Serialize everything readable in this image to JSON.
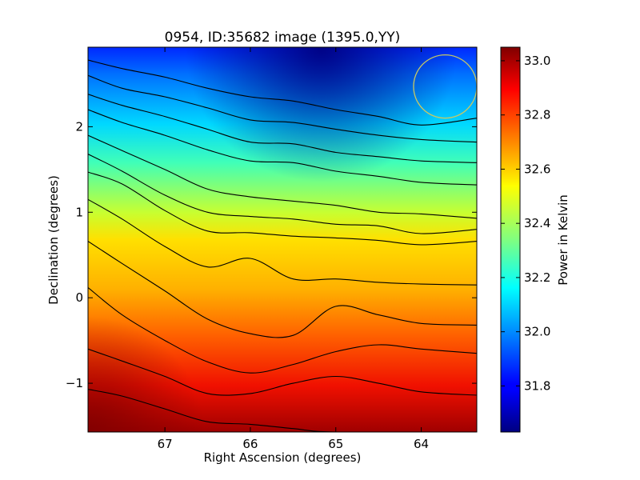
{
  "chart_data": {
    "type": "heatmap",
    "title": "0954, ID:35682 image (1395.0,YY)",
    "xlabel": "Right Ascension (degrees)",
    "ylabel": "Declination (degrees)",
    "xlim": [
      67.9,
      63.35
    ],
    "ylim": [
      -1.57,
      2.93
    ],
    "x_inverted": true,
    "x_ticks": [
      {
        "value": 67,
        "label": "67"
      },
      {
        "value": 66,
        "label": "66"
      },
      {
        "value": 65,
        "label": "65"
      },
      {
        "value": 64,
        "label": "64"
      }
    ],
    "y_ticks": [
      {
        "value": 2,
        "label": "2"
      },
      {
        "value": 1,
        "label": "1"
      },
      {
        "value": 0,
        "label": "0"
      },
      {
        "value": -1,
        "label": "−1"
      }
    ],
    "colormap": "jet",
    "colorbar": {
      "label": "Power in Kelvin",
      "range": [
        31.63,
        33.05
      ],
      "ticks": [
        {
          "value": 31.8,
          "label": "31.8"
        },
        {
          "value": 32.0,
          "label": "32.0"
        },
        {
          "value": 32.2,
          "label": "32.2"
        },
        {
          "value": 32.4,
          "label": "32.4"
        },
        {
          "value": 32.6,
          "label": "32.6"
        },
        {
          "value": 32.8,
          "label": "32.8"
        },
        {
          "value": 33.0,
          "label": "33.0"
        }
      ]
    },
    "grid": false,
    "contour_color": "#000000",
    "annotation_circle": {
      "ra": 63.72,
      "dec": 2.47,
      "radius_deg": 0.37,
      "color": "#c8c864"
    },
    "contours": [
      [
        [
          67.9,
          2.78
        ],
        [
          67.5,
          2.68
        ],
        [
          67.0,
          2.58
        ],
        [
          66.5,
          2.45
        ],
        [
          66.0,
          2.35
        ],
        [
          65.5,
          2.3
        ],
        [
          65.0,
          2.2
        ],
        [
          64.5,
          2.12
        ],
        [
          64.0,
          2.02
        ],
        [
          63.35,
          2.1
        ]
      ],
      [
        [
          67.9,
          2.6
        ],
        [
          67.5,
          2.45
        ],
        [
          67.0,
          2.35
        ],
        [
          66.5,
          2.22
        ],
        [
          66.0,
          2.08
        ],
        [
          65.5,
          2.05
        ],
        [
          65.0,
          1.97
        ],
        [
          64.5,
          1.9
        ],
        [
          64.0,
          1.85
        ],
        [
          63.35,
          1.82
        ]
      ],
      [
        [
          67.9,
          2.38
        ],
        [
          67.5,
          2.25
        ],
        [
          67.0,
          2.12
        ],
        [
          66.5,
          1.97
        ],
        [
          66.0,
          1.82
        ],
        [
          65.5,
          1.8
        ],
        [
          65.0,
          1.7
        ],
        [
          64.5,
          1.65
        ],
        [
          64.0,
          1.6
        ],
        [
          63.35,
          1.58
        ]
      ],
      [
        [
          67.9,
          2.2
        ],
        [
          67.5,
          2.05
        ],
        [
          67.0,
          1.9
        ],
        [
          66.5,
          1.73
        ],
        [
          66.0,
          1.6
        ],
        [
          65.5,
          1.58
        ],
        [
          65.0,
          1.48
        ],
        [
          64.5,
          1.42
        ],
        [
          64.0,
          1.35
        ],
        [
          63.35,
          1.32
        ]
      ],
      [
        [
          67.9,
          1.9
        ],
        [
          67.5,
          1.72
        ],
        [
          67.0,
          1.5
        ],
        [
          66.5,
          1.27
        ],
        [
          66.0,
          1.18
        ],
        [
          65.5,
          1.13
        ],
        [
          65.0,
          1.08
        ],
        [
          64.5,
          1.0
        ],
        [
          64.0,
          0.98
        ],
        [
          63.35,
          0.93
        ]
      ],
      [
        [
          67.9,
          1.68
        ],
        [
          67.5,
          1.48
        ],
        [
          67.0,
          1.2
        ],
        [
          66.5,
          1.0
        ],
        [
          66.0,
          0.95
        ],
        [
          65.5,
          0.92
        ],
        [
          65.0,
          0.86
        ],
        [
          64.5,
          0.84
        ],
        [
          64.0,
          0.75
        ],
        [
          63.35,
          0.8
        ]
      ],
      [
        [
          67.9,
          1.47
        ],
        [
          67.5,
          1.33
        ],
        [
          67.0,
          1.02
        ],
        [
          66.5,
          0.78
        ],
        [
          66.0,
          0.76
        ],
        [
          65.5,
          0.72
        ],
        [
          65.0,
          0.7
        ],
        [
          64.5,
          0.67
        ],
        [
          64.0,
          0.62
        ],
        [
          63.35,
          0.66
        ]
      ],
      [
        [
          67.9,
          1.15
        ],
        [
          67.5,
          0.92
        ],
        [
          67.0,
          0.6
        ],
        [
          66.5,
          0.36
        ],
        [
          66.0,
          0.46
        ],
        [
          65.5,
          0.22
        ],
        [
          65.0,
          0.22
        ],
        [
          64.5,
          0.18
        ],
        [
          64.0,
          0.16
        ],
        [
          63.35,
          0.15
        ]
      ],
      [
        [
          67.9,
          0.66
        ],
        [
          67.5,
          0.4
        ],
        [
          67.0,
          0.08
        ],
        [
          66.5,
          -0.25
        ],
        [
          66.0,
          -0.42
        ],
        [
          65.5,
          -0.44
        ],
        [
          65.0,
          -0.1
        ],
        [
          64.5,
          -0.2
        ],
        [
          64.0,
          -0.3
        ],
        [
          63.35,
          -0.32
        ]
      ],
      [
        [
          67.9,
          0.12
        ],
        [
          67.5,
          -0.2
        ],
        [
          67.0,
          -0.5
        ],
        [
          66.5,
          -0.75
        ],
        [
          66.0,
          -0.88
        ],
        [
          65.5,
          -0.78
        ],
        [
          65.0,
          -0.63
        ],
        [
          64.5,
          -0.55
        ],
        [
          64.0,
          -0.6
        ],
        [
          63.35,
          -0.65
        ]
      ],
      [
        [
          67.9,
          -0.6
        ],
        [
          67.5,
          -0.74
        ],
        [
          67.0,
          -0.92
        ],
        [
          66.5,
          -1.12
        ],
        [
          66.0,
          -1.12
        ],
        [
          65.5,
          -1.0
        ],
        [
          65.0,
          -0.92
        ],
        [
          64.5,
          -1.0
        ],
        [
          64.0,
          -1.1
        ],
        [
          63.35,
          -1.14
        ]
      ],
      [
        [
          67.9,
          -1.07
        ],
        [
          67.5,
          -1.15
        ],
        [
          67.0,
          -1.3
        ],
        [
          66.5,
          -1.45
        ],
        [
          66.0,
          -1.48
        ],
        [
          65.5,
          -1.53
        ],
        [
          65.0,
          -1.57
        ],
        [
          63.35,
          -1.57
        ]
      ]
    ]
  }
}
